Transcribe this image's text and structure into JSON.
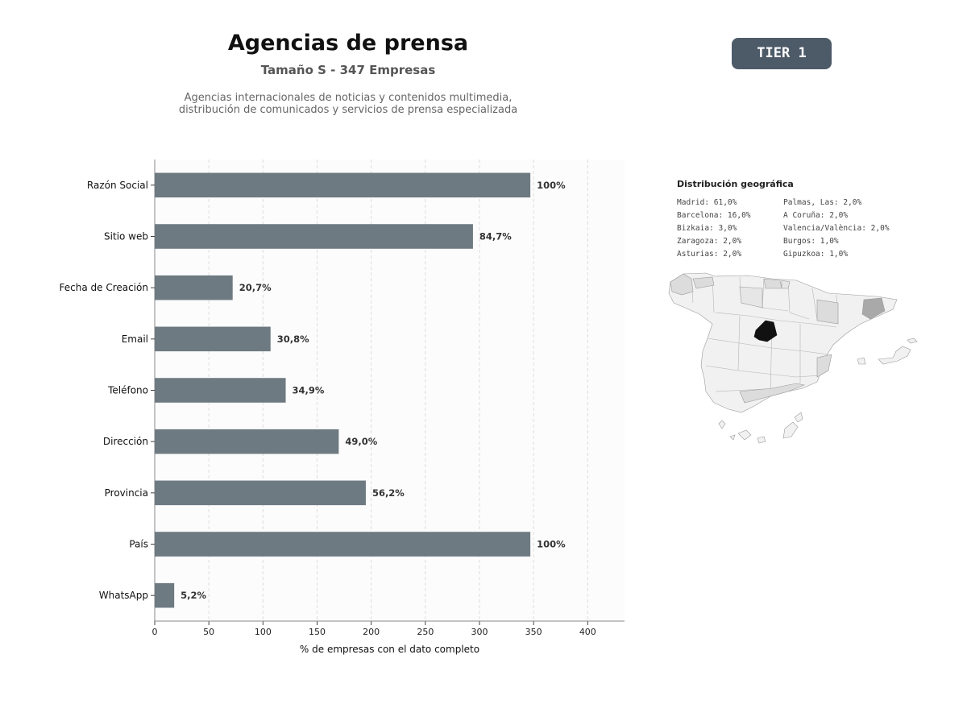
{
  "header": {
    "title": "Agencias de prensa",
    "subtitle": "Tamaño S - 347 Empresas",
    "description_line1": "Agencias internacionales de noticias y contenidos multimedia,",
    "description_line2": "distribución de comunicados y servicios de prensa especializada",
    "tier": "TIER 1"
  },
  "colors": {
    "bar": "#6e7a82",
    "tier_badge": "#4d5a68",
    "map_highlight": "#111111",
    "map_mid": "#a9a9a9",
    "map_light": "#dcdcdc",
    "map_base": "#f1f1f1"
  },
  "chart_data": {
    "type": "bar",
    "orientation": "horizontal",
    "categories": [
      "Razón Social",
      "Sitio web",
      "Fecha de Creación",
      "Email",
      "Teléfono",
      "Dirección",
      "Provincia",
      "País",
      "WhatsApp"
    ],
    "values": [
      347,
      294,
      72,
      107,
      121,
      170,
      195,
      347,
      18
    ],
    "data_labels": [
      "100%",
      "84,7%",
      "20,7%",
      "30,8%",
      "34,9%",
      "49,0%",
      "56,2%",
      "100%",
      "5,2%"
    ],
    "xlabel": "% de empresas con el dato completo",
    "xlim": [
      0,
      434
    ],
    "xticks": [
      0,
      50,
      100,
      150,
      200,
      250,
      300,
      350,
      400
    ],
    "grid": true
  },
  "geo": {
    "title": "Distribución geográfica",
    "column1": [
      "Madrid: 61,0%",
      "Barcelona: 16,0%",
      "Bizkaia: 3,0%",
      "Zaragoza: 2,0%",
      "Asturias: 2,0%"
    ],
    "column2": [
      "Palmas, Las: 2,0%",
      "A Coruña: 2,0%",
      "Valencia/València: 2,0%",
      "Burgos: 1,0%",
      "Gipuzkoa: 1,0%"
    ]
  }
}
